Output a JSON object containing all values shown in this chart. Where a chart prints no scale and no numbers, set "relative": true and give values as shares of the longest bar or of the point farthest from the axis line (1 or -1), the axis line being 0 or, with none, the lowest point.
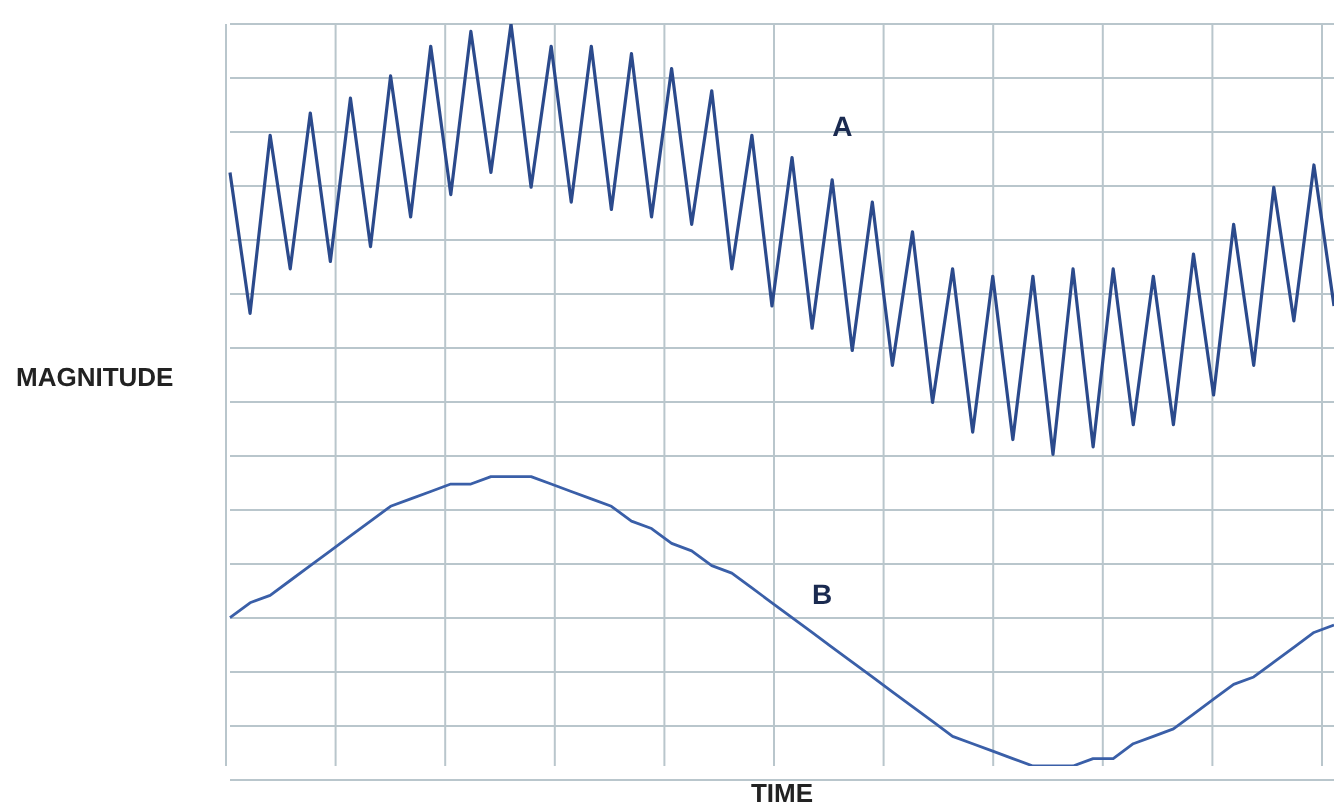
{
  "chart_data": {
    "type": "line",
    "xlabel": "TIME",
    "ylabel": "MAGNITUDE",
    "relative": true,
    "grid": true,
    "tick_labels": false,
    "marker": "none",
    "line_style": "solid",
    "categories": [
      null,
      null,
      null,
      null,
      null,
      null,
      null,
      null,
      null,
      null,
      null,
      null,
      null,
      null,
      null,
      null,
      null,
      null,
      null,
      null,
      null,
      null,
      null,
      null,
      null,
      null,
      null,
      null,
      null,
      null,
      null,
      null,
      null,
      null,
      null,
      null,
      null,
      null,
      null,
      null,
      null,
      null,
      null,
      null,
      null,
      null,
      null,
      null,
      null,
      null,
      null,
      null,
      null,
      null,
      null,
      null
    ],
    "series": [
      {
        "name": "A",
        "color": "#2b4a8c",
        "values": [
          0.8,
          0.61,
          0.85,
          0.67,
          0.88,
          0.68,
          0.9,
          0.7,
          0.93,
          0.74,
          0.97,
          0.77,
          0.99,
          0.8,
          1.0,
          0.78,
          0.97,
          0.76,
          0.97,
          0.75,
          0.96,
          0.74,
          0.94,
          0.73,
          0.91,
          0.67,
          0.85,
          0.62,
          0.82,
          0.59,
          0.79,
          0.56,
          0.76,
          0.54,
          0.72,
          0.49,
          0.67,
          0.45,
          0.66,
          0.44,
          0.66,
          0.42,
          0.67,
          0.43,
          0.67,
          0.46,
          0.66,
          0.46,
          0.69,
          0.5,
          0.73,
          0.54,
          0.78,
          0.6,
          0.81,
          0.62
        ]
      },
      {
        "name": "B",
        "color": "#3a5fa8",
        "values": [
          0.2,
          0.22,
          0.23,
          0.25,
          0.27,
          0.29,
          0.31,
          0.33,
          0.35,
          0.36,
          0.37,
          0.38,
          0.38,
          0.39,
          0.39,
          0.39,
          0.38,
          0.37,
          0.36,
          0.35,
          0.33,
          0.32,
          0.3,
          0.29,
          0.27,
          0.26,
          0.24,
          0.22,
          0.2,
          0.18,
          0.16,
          0.14,
          0.12,
          0.1,
          0.08,
          0.06,
          0.04,
          0.03,
          0.02,
          0.01,
          0.0,
          0.0,
          0.0,
          0.01,
          0.01,
          0.03,
          0.04,
          0.05,
          0.07,
          0.09,
          0.11,
          0.12,
          0.14,
          0.16,
          0.18,
          0.19
        ]
      }
    ]
  }
}
